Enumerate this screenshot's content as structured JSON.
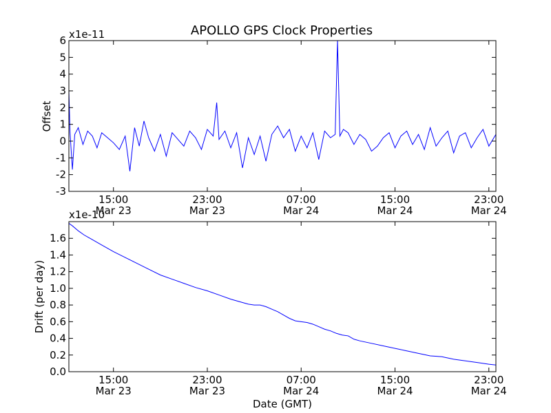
{
  "chart_data": [
    {
      "type": "line",
      "title": "APOLLO GPS Clock Properties",
      "ylabel": "Offset",
      "xlabel": "",
      "y_scale_label": "x1e-11",
      "ylim": [
        -3,
        6
      ],
      "yticks": [
        -3,
        -2,
        -1,
        0,
        1,
        2,
        3,
        4,
        5,
        6
      ],
      "xlim_hours": [
        11.2,
        47.6
      ],
      "xticks": [
        {
          "hour": 15,
          "time": "15:00",
          "date": "Mar 23"
        },
        {
          "hour": 23,
          "time": "23:00",
          "date": "Mar 23"
        },
        {
          "hour": 31,
          "time": "07:00",
          "date": "Mar 24"
        },
        {
          "hour": 39,
          "time": "15:00",
          "date": "Mar 24"
        },
        {
          "hour": 47,
          "time": "23:00",
          "date": "Mar 24"
        }
      ],
      "grid": false,
      "color": "#0000ff",
      "series": [
        {
          "x_hours": [
            11.2,
            11.3,
            11.5,
            11.7,
            12.0,
            12.4,
            12.8,
            13.2,
            13.6,
            14.0,
            14.5,
            15.0,
            15.5,
            16.0,
            16.4,
            16.8,
            17.2,
            17.6,
            18.0,
            18.5,
            19.0,
            19.5,
            20.0,
            20.5,
            21.0,
            21.5,
            22.0,
            22.5,
            23.0,
            23.5,
            23.8,
            24.0,
            24.5,
            25.0,
            25.5,
            26.0,
            26.5,
            27.0,
            27.5,
            28.0,
            28.5,
            29.0,
            29.5,
            30.0,
            30.5,
            31.0,
            31.5,
            32.0,
            32.5,
            33.0,
            33.5,
            33.9,
            34.1,
            34.3,
            34.6,
            35.0,
            35.5,
            36.0,
            36.5,
            37.0,
            37.5,
            38.0,
            38.5,
            39.0,
            39.5,
            40.0,
            40.5,
            41.0,
            41.5,
            42.0,
            42.5,
            43.0,
            43.5,
            44.0,
            44.5,
            45.0,
            45.5,
            46.0,
            46.5,
            47.0,
            47.6
          ],
          "y": [
            3.0,
            0.5,
            -1.7,
            0.4,
            0.8,
            -0.2,
            0.6,
            0.3,
            -0.4,
            0.5,
            0.2,
            -0.1,
            -0.5,
            0.3,
            -1.8,
            0.8,
            -0.3,
            1.2,
            0.2,
            -0.6,
            0.4,
            -0.9,
            0.5,
            0.1,
            -0.3,
            0.6,
            0.2,
            -0.5,
            0.7,
            0.3,
            2.3,
            0.1,
            0.6,
            -0.4,
            0.5,
            -1.6,
            0.2,
            -0.8,
            0.3,
            -1.2,
            0.4,
            0.9,
            0.2,
            0.7,
            -0.6,
            0.3,
            -0.4,
            0.5,
            -1.1,
            0.6,
            0.2,
            0.4,
            6.0,
            0.3,
            0.7,
            0.5,
            -0.2,
            0.4,
            0.1,
            -0.6,
            -0.3,
            0.2,
            0.5,
            -0.4,
            0.3,
            0.6,
            -0.2,
            0.4,
            -0.5,
            0.8,
            -0.3,
            0.2,
            0.6,
            -0.7,
            0.3,
            0.5,
            -0.4,
            0.2,
            0.7,
            -0.3,
            0.4
          ]
        }
      ]
    },
    {
      "type": "line",
      "title": "",
      "ylabel": "Drift (per day)",
      "xlabel": "Date (GMT)",
      "y_scale_label": "x1e-10",
      "ylim": [
        0.0,
        1.8
      ],
      "yticks": [
        0.0,
        0.2,
        0.4,
        0.6,
        0.8,
        1.0,
        1.2,
        1.4,
        1.6
      ],
      "xlim_hours": [
        11.2,
        47.6
      ],
      "xticks": [
        {
          "hour": 15,
          "time": "15:00",
          "date": "Mar 23"
        },
        {
          "hour": 23,
          "time": "23:00",
          "date": "Mar 23"
        },
        {
          "hour": 31,
          "time": "07:00",
          "date": "Mar 24"
        },
        {
          "hour": 39,
          "time": "15:00",
          "date": "Mar 24"
        },
        {
          "hour": 47,
          "time": "23:00",
          "date": "Mar 24"
        }
      ],
      "grid": false,
      "color": "#0000ff",
      "series": [
        {
          "x_hours": [
            11.2,
            11.5,
            12.0,
            12.5,
            13.0,
            14.0,
            15.0,
            16.0,
            17.0,
            18.0,
            19.0,
            20.0,
            21.0,
            22.0,
            23.0,
            24.0,
            25.0,
            26.0,
            26.5,
            27.0,
            27.5,
            28.0,
            28.5,
            29.0,
            29.5,
            30.0,
            30.5,
            31.0,
            31.5,
            32.0,
            32.5,
            33.0,
            33.5,
            34.0,
            34.5,
            35.0,
            35.5,
            36.0,
            37.0,
            38.0,
            39.0,
            40.0,
            41.0,
            42.0,
            43.0,
            44.0,
            45.0,
            46.0,
            47.0,
            47.6
          ],
          "y": [
            1.78,
            1.75,
            1.69,
            1.64,
            1.6,
            1.52,
            1.44,
            1.37,
            1.3,
            1.23,
            1.16,
            1.11,
            1.06,
            1.01,
            0.97,
            0.92,
            0.87,
            0.83,
            0.81,
            0.8,
            0.8,
            0.78,
            0.75,
            0.72,
            0.68,
            0.64,
            0.61,
            0.6,
            0.59,
            0.57,
            0.54,
            0.51,
            0.49,
            0.46,
            0.44,
            0.43,
            0.39,
            0.37,
            0.34,
            0.31,
            0.28,
            0.25,
            0.22,
            0.19,
            0.18,
            0.15,
            0.13,
            0.11,
            0.09,
            0.08
          ]
        }
      ]
    }
  ]
}
